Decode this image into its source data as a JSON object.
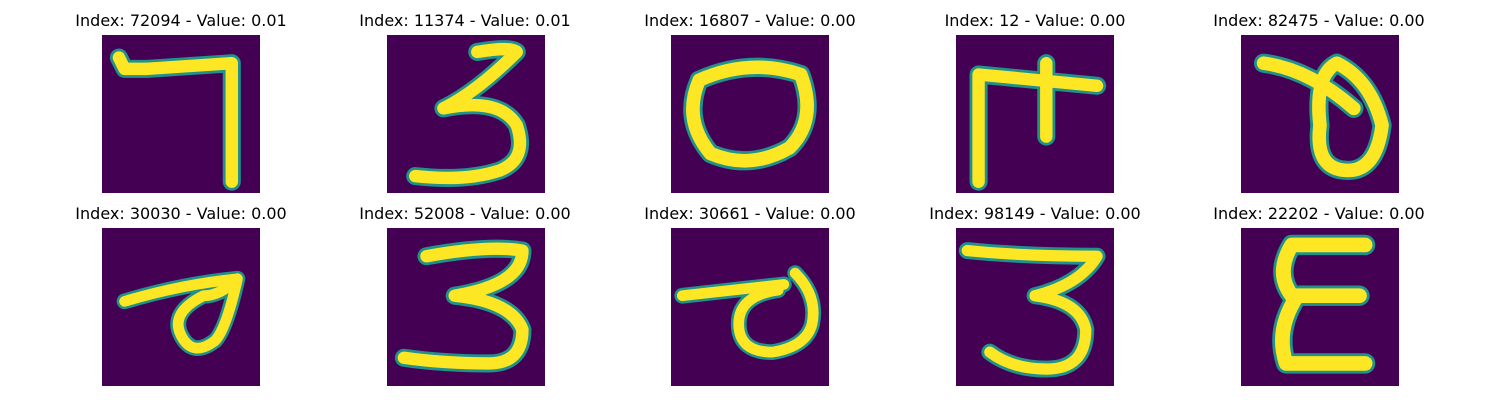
{
  "figure": {
    "panels": [
      {
        "title": "Index: 72094 - Value: 0.01",
        "index": "72094",
        "value": "0.01",
        "glyph": "seven-glyph"
      },
      {
        "title": "Index: 11374 - Value: 0.01",
        "index": "11374",
        "value": "0.01",
        "glyph": "three-glyph"
      },
      {
        "title": "Index: 16807 - Value: 0.00",
        "index": "16807",
        "value": "0.00",
        "glyph": "zero-glyph"
      },
      {
        "title": "Index: 12 - Value: 0.00",
        "index": "12",
        "value": "0.00",
        "glyph": "cross-glyph"
      },
      {
        "title": "Index: 82475 - Value: 0.00",
        "index": "82475",
        "value": "0.00",
        "glyph": "loop-glyph"
      },
      {
        "title": "Index: 30030 - Value: 0.00",
        "index": "30030",
        "value": "0.00",
        "glyph": "loop-stroke-glyph"
      },
      {
        "title": "Index: 52008 - Value: 0.00",
        "index": "52008",
        "value": "0.00",
        "glyph": "three-glyph"
      },
      {
        "title": "Index: 30661 - Value: 0.00",
        "index": "30661",
        "value": "0.00",
        "glyph": "loop-stroke-glyph"
      },
      {
        "title": "Index: 98149 - Value: 0.00",
        "index": "98149",
        "value": "0.00",
        "glyph": "three-glyph"
      },
      {
        "title": "Index: 22202 - Value: 0.00",
        "index": "22202",
        "value": "0.00",
        "glyph": "epsilon-glyph"
      }
    ],
    "colors": {
      "background": "#440154",
      "stroke": "#fde725",
      "edge": "#21918c"
    }
  }
}
